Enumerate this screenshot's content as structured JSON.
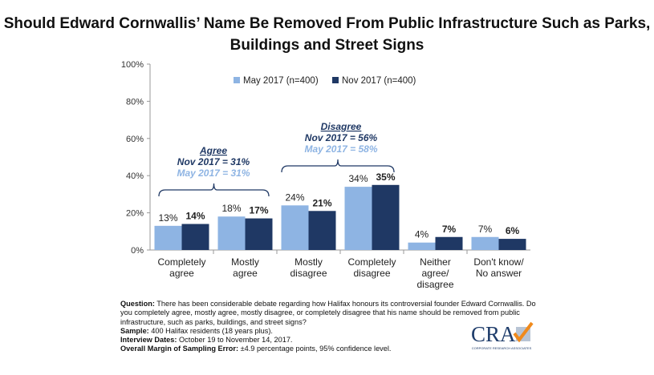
{
  "chart_data": {
    "type": "bar",
    "title": "Should Edward Cornwallis’ Name Be Removed From Public Infrastructure Such as Parks, Buildings and Street Signs",
    "categories": [
      [
        "Completely",
        "agree"
      ],
      [
        "Mostly",
        "agree"
      ],
      [
        "Mostly",
        "disagree"
      ],
      [
        "Completely",
        "disagree"
      ],
      [
        "Neither",
        "agree/",
        "disagree"
      ],
      [
        "Don't know/",
        "No answer"
      ]
    ],
    "series": [
      {
        "name": "May 2017 (n=400)",
        "color": "#8eb4e3",
        "values": [
          13,
          18,
          24,
          34,
          4,
          7
        ]
      },
      {
        "name": "Nov 2017 (n=400)",
        "color": "#1f3864",
        "values": [
          14,
          17,
          21,
          35,
          7,
          6
        ]
      }
    ],
    "ylim": [
      0,
      100
    ],
    "yticks": [
      "0%",
      "20%",
      "40%",
      "60%",
      "80%",
      "100%"
    ],
    "legend_position": "top",
    "grid": false,
    "annotations": [
      {
        "label": "Agree",
        "nov": "Nov 2017 = 31%",
        "may": "May 2017 = 31%"
      },
      {
        "label": "Disagree",
        "nov": "Nov 2017 = 56%",
        "may": "May 2017 = 58%"
      }
    ]
  },
  "notes": {
    "question_label": "Question:",
    "question": " There has been considerable debate regarding how Halifax honours its controversial founder Edward Cornwallis. Do you completely agree, mostly agree, mostly disagree, or completely disagree that his name should be removed from public infrastructure, such as parks, buildings, and street signs?",
    "sample_label": "Sample:",
    "sample": " 400 Halifax residents (18 years plus).",
    "dates_label": "Interview Dates:",
    "dates": " October 19 to November 14, 2017.",
    "moe_label": "Overall Margin of Sampling Error:",
    "moe": " ±4.9 percentage points, 95% confidence level."
  },
  "logo": {
    "text": "CRA",
    "subtext": "CORPORATE RESEARCH ASSOCIATES"
  }
}
